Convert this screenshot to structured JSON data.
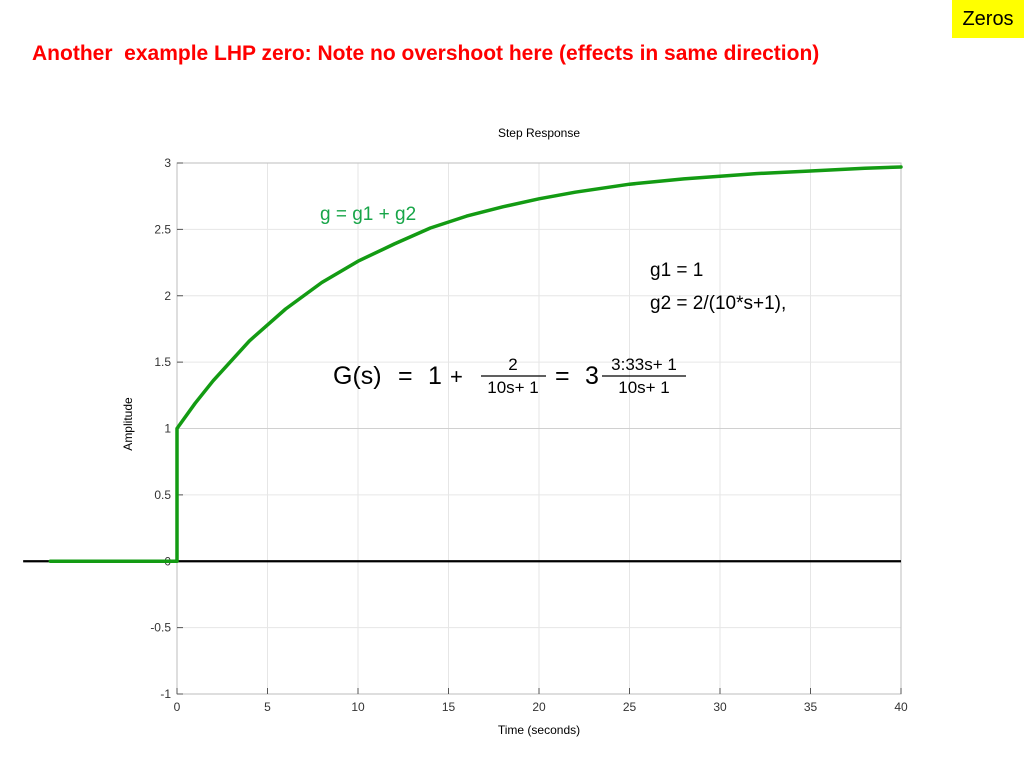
{
  "slide": {
    "tag": "Zeros",
    "title": "Another  example LHP zero: Note no overshoot here (effects in same direction)"
  },
  "chart_data": {
    "type": "line",
    "title": "Step Response",
    "xlabel": "Time (seconds)",
    "ylabel": "Amplitude",
    "xlim": [
      0,
      40
    ],
    "ylim": [
      -1,
      3
    ],
    "xticks": [
      0,
      5,
      10,
      15,
      20,
      25,
      30,
      35,
      40
    ],
    "yticks": [
      -1,
      -0.5,
      0,
      0.5,
      1,
      1.5,
      2,
      2.5,
      3
    ],
    "grid": true,
    "series": [
      {
        "name": "g = g1 + g2",
        "color": "#139b13",
        "x": [
          -7,
          0,
          0,
          1,
          2,
          4,
          6,
          8,
          10,
          12,
          14,
          16,
          18,
          20,
          22,
          25,
          28,
          30,
          32,
          35,
          38,
          40
        ],
        "y": [
          0,
          0,
          1,
          1.19,
          1.36,
          1.66,
          1.9,
          2.1,
          2.26,
          2.39,
          2.51,
          2.6,
          2.67,
          2.73,
          2.78,
          2.84,
          2.88,
          2.9,
          2.92,
          2.94,
          2.96,
          2.97
        ]
      }
    ],
    "reference_lines": [
      {
        "y": 0,
        "color": "#000000",
        "x_from": -8.5,
        "x_to": 40
      },
      {
        "y": 1,
        "color": "#d0d0d0",
        "x_from": 0,
        "x_to": 40
      }
    ],
    "annotations": {
      "series_label": "g = g1 + g2",
      "g1_line": "g1 = 1",
      "g2_line": "g2 = 2/(10*s+1),",
      "formula": {
        "lhs": "G(s)",
        "eq1": "=",
        "one": "1",
        "plus": "+",
        "frac1_num": "2",
        "frac1_den": "10s+ 1",
        "eq2": "=",
        "three": "3",
        "frac2_num": "3:33s+ 1",
        "frac2_den": "10s+ 1"
      }
    }
  }
}
